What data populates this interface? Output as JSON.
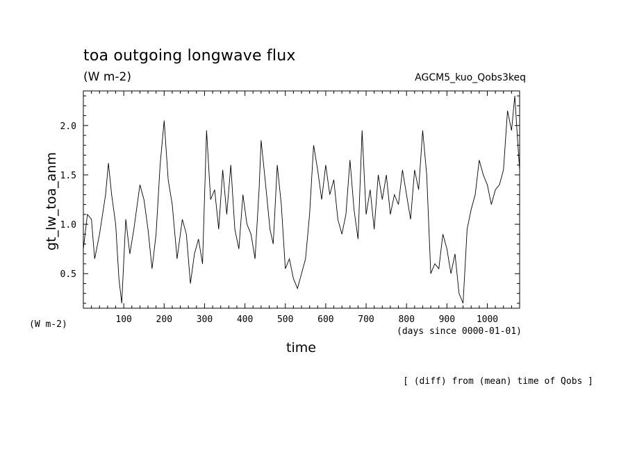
{
  "chart_data": {
    "type": "line",
    "title": "toa outgoing longwave flux",
    "units": "(W m-2)",
    "run_name": "AGCM5_kuo_Qobs3keq",
    "ylabel": "gt_lw_toa_anm",
    "ylabel_units": "(W m-2)",
    "xlabel": "time",
    "x_units": "(days since 0000-01-01)",
    "footnote": "[ (diff) from (mean) time of Qobs ]",
    "xlim": [
      0,
      1080
    ],
    "ylim": [
      0.15,
      2.35
    ],
    "x_ticks": [
      100,
      200,
      300,
      400,
      500,
      600,
      700,
      800,
      900,
      1000
    ],
    "x_tick_labels": [
      "100",
      "200",
      "300",
      "400",
      "500",
      "600",
      "700",
      "800",
      "900",
      "1000"
    ],
    "y_ticks": [
      0.5,
      1.0,
      1.5,
      2.0
    ],
    "y_tick_labels": [
      "0.5",
      "1.0",
      "1.5",
      "2.0"
    ],
    "line_color": "#000000",
    "series": [
      {
        "x": [
          0,
          10,
          20,
          28,
          40,
          55,
          62,
          70,
          80,
          88,
          95,
          105,
          115,
          125,
          140,
          150,
          160,
          170,
          180,
          190,
          200,
          210,
          220,
          232,
          245,
          255,
          265,
          275,
          285,
          295,
          305,
          315,
          325,
          335,
          345,
          355,
          365,
          375,
          385,
          395,
          405,
          415,
          425,
          435,
          440,
          450,
          462,
          470,
          480,
          490,
          500,
          510,
          520,
          530,
          540,
          550,
          560,
          570,
          580,
          590,
          600,
          610,
          620,
          630,
          640,
          650,
          660,
          670,
          680,
          690,
          700,
          710,
          720,
          730,
          740,
          750,
          760,
          770,
          780,
          790,
          800,
          810,
          820,
          830,
          840,
          850,
          860,
          870,
          880,
          890,
          900,
          910,
          920,
          930,
          940,
          950,
          960,
          970,
          980,
          990,
          1000,
          1010,
          1020,
          1030,
          1040,
          1050,
          1060,
          1068,
          1075,
          1080
        ],
        "y": [
          0.75,
          1.1,
          1.05,
          0.65,
          0.9,
          1.3,
          1.62,
          1.3,
          1.0,
          0.45,
          0.2,
          1.05,
          0.7,
          0.95,
          1.4,
          1.25,
          0.95,
          0.55,
          0.9,
          1.6,
          2.05,
          1.45,
          1.2,
          0.65,
          1.05,
          0.9,
          0.4,
          0.7,
          0.85,
          0.6,
          1.95,
          1.25,
          1.35,
          0.95,
          1.55,
          1.1,
          1.6,
          0.95,
          0.75,
          1.3,
          1.0,
          0.9,
          0.65,
          1.35,
          1.85,
          1.45,
          0.95,
          0.8,
          1.6,
          1.2,
          0.55,
          0.65,
          0.45,
          0.35,
          0.5,
          0.65,
          1.1,
          1.8,
          1.55,
          1.25,
          1.6,
          1.3,
          1.45,
          1.05,
          0.9,
          1.1,
          1.65,
          1.15,
          0.85,
          1.95,
          1.1,
          1.35,
          0.95,
          1.5,
          1.25,
          1.5,
          1.1,
          1.3,
          1.2,
          1.55,
          1.3,
          1.05,
          1.55,
          1.35,
          1.95,
          1.5,
          0.5,
          0.6,
          0.55,
          0.9,
          0.75,
          0.5,
          0.7,
          0.3,
          0.2,
          0.95,
          1.15,
          1.3,
          1.65,
          1.5,
          1.4,
          1.2,
          1.35,
          1.4,
          1.55,
          2.15,
          1.95,
          2.3,
          1.85,
          1.55
        ]
      }
    ]
  }
}
